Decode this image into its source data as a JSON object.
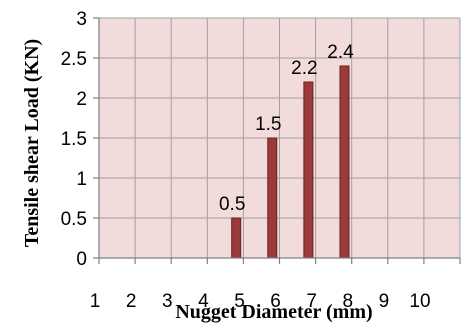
{
  "chart_data": {
    "type": "bar",
    "title": "",
    "xlabel": "Nugget Diameter (mm)",
    "ylabel": "Tensile shear Load (KN)",
    "xlim": [
      0,
      10
    ],
    "ylim": [
      0,
      3
    ],
    "x_ticks": [
      "1",
      "2",
      "3",
      "4",
      "5",
      "6",
      "7",
      "8",
      "9",
      "10"
    ],
    "y_ticks": [
      "0",
      "0.5",
      "1",
      "1.5",
      "2",
      "2.5",
      "3"
    ],
    "x": [
      3.8,
      4.8,
      5.8,
      6.8
    ],
    "values": [
      0.5,
      1.5,
      2.2,
      2.4
    ],
    "data_labels": [
      "0.5",
      "1.5",
      "2.2",
      "2.4"
    ],
    "grid": true,
    "legend": "none",
    "colors": {
      "bar_fill": "#9b3a3a",
      "bar_stroke": "#6b2020",
      "plot_background": "#f2dcdb",
      "grid": "#a0a0a0",
      "axis": "#808080"
    }
  }
}
